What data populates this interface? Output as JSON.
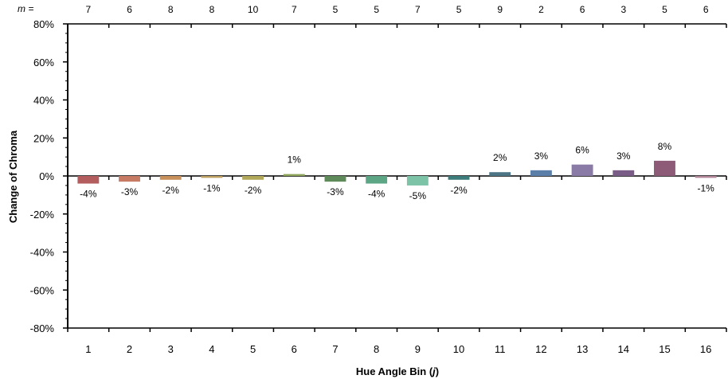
{
  "chart_data": {
    "type": "bar",
    "title": "",
    "xlabel_prefix": "Hue Angle Bin (",
    "xlabel_var": "j",
    "xlabel_suffix": ")",
    "ylabel": "Change of Chroma",
    "ylim": [
      -80,
      80
    ],
    "ytick_step": 20,
    "y_format": "percent",
    "grid": false,
    "categories": [
      "1",
      "2",
      "3",
      "4",
      "5",
      "6",
      "7",
      "8",
      "9",
      "10",
      "11",
      "12",
      "13",
      "14",
      "15",
      "16"
    ],
    "values": [
      -4,
      -3,
      -2,
      -1,
      -2,
      1,
      -3,
      -4,
      -5,
      -2,
      2,
      3,
      6,
      3,
      8,
      -1
    ],
    "data_labels": [
      "-4%",
      "-3%",
      "-2%",
      "-1%",
      "-2%",
      "1%",
      "-3%",
      "-4%",
      "-5%",
      "-2%",
      "2%",
      "3%",
      "6%",
      "3%",
      "8%",
      "-1%"
    ],
    "colors": [
      "#b35d5f",
      "#c77a64",
      "#c8905a",
      "#bfa263",
      "#b2a85a",
      "#8ea55b",
      "#5f8a5a",
      "#5ca685",
      "#7cc3a8",
      "#3c7c7a",
      "#4c7484",
      "#5b7fa8",
      "#8a7aa6",
      "#7a5d86",
      "#8d5a78",
      "#b3869a"
    ],
    "top_label_prefix": "m =",
    "m_values": [
      "7",
      "6",
      "8",
      "8",
      "10",
      "7",
      "5",
      "5",
      "7",
      "5",
      "9",
      "2",
      "6",
      "3",
      "5",
      "6"
    ]
  }
}
